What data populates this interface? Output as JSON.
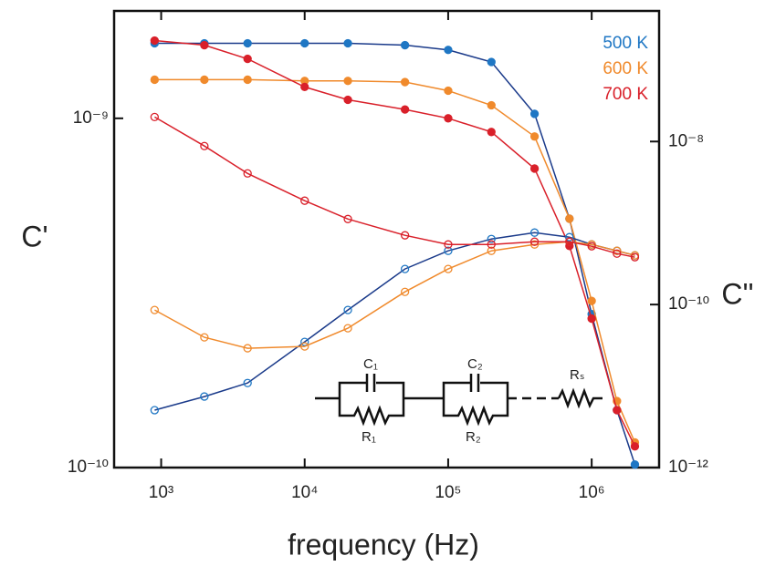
{
  "chart_data": {
    "type": "scatter",
    "x_label": "frequency (Hz)",
    "y_label": "C'",
    "y2_label": "C''",
    "xscale": "log",
    "yscale": "log",
    "y2scale": "log",
    "xlim": [
      470,
      2950000
    ],
    "ylim": [
      1e-10,
      2.03e-09
    ],
    "y2lim": [
      1e-12,
      4e-07
    ],
    "xticks": [
      {
        "value": 1000,
        "label": "10³"
      },
      {
        "value": 10000,
        "label": "10⁴"
      },
      {
        "value": 100000,
        "label": "10⁵"
      },
      {
        "value": 1000000,
        "label": "10⁶"
      }
    ],
    "yticks": [
      {
        "value": 1e-10,
        "label": "10⁻¹⁰"
      },
      {
        "value": 1e-09,
        "label": "10⁻⁹"
      }
    ],
    "y2ticks": [
      {
        "value": 1e-12,
        "label": "10⁻¹²"
      },
      {
        "value": 1e-10,
        "label": "10⁻¹⁰"
      },
      {
        "value": 1e-08,
        "label": "10⁻⁸"
      }
    ],
    "x": [
      900,
      2000,
      4000,
      10000,
      20000,
      50000,
      100000,
      200000,
      400000,
      700000,
      1000000,
      1500000,
      2000000
    ],
    "series": [
      {
        "name": "500 K",
        "color": "#1f77c4",
        "line_color": "#1a3a8a",
        "marker": "filled",
        "values": [
          1.64e-09,
          1.64e-09,
          1.64e-09,
          1.64e-09,
          1.64e-09,
          1.62e-09,
          1.57e-09,
          1.45e-09,
          1.03e-09,
          5.16e-10,
          2.75e-10,
          1.46e-10,
          1.02e-10
        ]
      },
      {
        "name": "600 K",
        "color": "#f08a2c",
        "line_color": "#f08a2c",
        "marker": "filled",
        "values": [
          1.29e-09,
          1.29e-09,
          1.29e-09,
          1.28e-09,
          1.28e-09,
          1.27e-09,
          1.2e-09,
          1.09e-09,
          8.87e-10,
          5.16e-10,
          3e-10,
          1.55e-10,
          1.18e-10
        ]
      },
      {
        "name": "700 K",
        "color": "#d9202a",
        "line_color": "#d9202a",
        "marker": "filled",
        "values": [
          1.67e-09,
          1.62e-09,
          1.48e-09,
          1.23e-09,
          1.13e-09,
          1.06e-09,
          1e-09,
          9.14e-10,
          7.18e-10,
          4.31e-10,
          2.67e-10,
          1.46e-10,
          1.15e-10
        ]
      },
      {
        "color": "#1f77c4",
        "line_color": "#1a3a8a",
        "marker": "open",
        "axis": "y2",
        "values": [
          5.06e-12,
          7.44e-12,
          1.09e-11,
          3.48e-11,
          8.57e-11,
          2.73e-10,
          4.56e-10,
          6.37e-10,
          7.63e-10,
          6.71e-10,
          5.46e-10,
          4.56e-10,
          4.01e-10
        ]
      },
      {
        "color": "#f08a2c",
        "line_color": "#f08a2c",
        "marker": "open",
        "axis": "y2",
        "values": [
          8.57e-11,
          3.96e-11,
          2.91e-11,
          3.06e-11,
          5.12e-11,
          1.43e-10,
          2.73e-10,
          4.56e-10,
          5.46e-10,
          5.9e-10,
          5.46e-10,
          4.56e-10,
          4.01e-10
        ]
      },
      {
        "color": "#d9202a",
        "line_color": "#d9202a",
        "marker": "open",
        "axis": "y2",
        "values": [
          2e-08,
          8.8e-09,
          4.06e-09,
          1.88e-09,
          1.12e-09,
          7.07e-10,
          5.46e-10,
          5.46e-10,
          5.9e-10,
          5.9e-10,
          5.19e-10,
          4.22e-10,
          3.81e-10
        ]
      }
    ],
    "legend": "upper right",
    "circuit": {
      "c1": "C₁",
      "c2": "C₂",
      "r1": "R₁",
      "r2": "R₂",
      "rs": "Rₛ"
    }
  }
}
